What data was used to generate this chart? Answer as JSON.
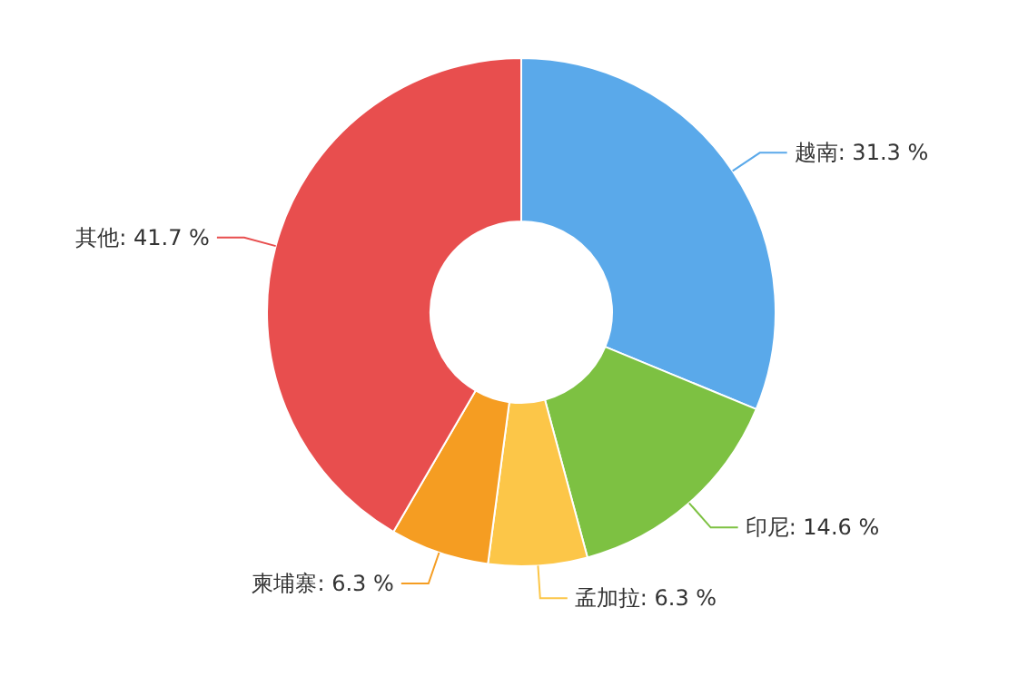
{
  "chart_data": {
    "type": "donut",
    "categories": [
      "越南",
      "印尼",
      "孟加拉",
      "柬埔寨",
      "其他"
    ],
    "values": [
      31.3,
      14.6,
      6.3,
      6.3,
      41.7
    ],
    "value_labels": [
      "31.3 %",
      "14.6 %",
      "6.3 %",
      "6.3 %",
      "41.7 %"
    ],
    "colors": [
      "#5aa9ea",
      "#7dc142",
      "#fcc648",
      "#f59d22",
      "#e84e4e"
    ]
  }
}
